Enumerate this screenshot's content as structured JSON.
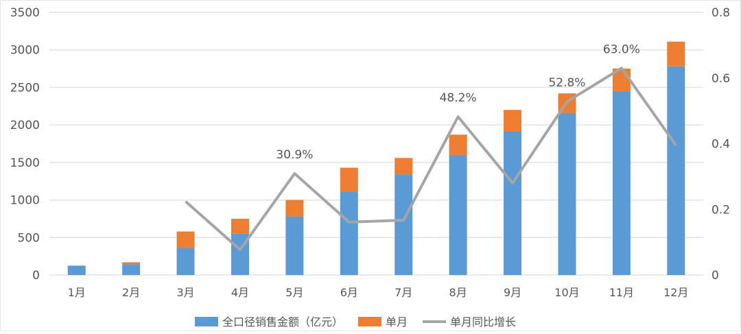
{
  "chart_data": {
    "type": "bar",
    "stacked": true,
    "categories": [
      "1月",
      "2月",
      "3月",
      "4月",
      "5月",
      "6月",
      "7月",
      "8月",
      "9月",
      "10月",
      "11月",
      "12月"
    ],
    "series": [
      {
        "name": "全口径销售金额（亿元）",
        "type": "bar",
        "axis": "left",
        "color": "#5b9bd5",
        "values": [
          125,
          145,
          360,
          550,
          780,
          1110,
          1340,
          1600,
          1910,
          2160,
          2450,
          2780
        ]
      },
      {
        "name": "单月",
        "type": "bar",
        "axis": "left",
        "color": "#ed7d31",
        "values": [
          0,
          25,
          220,
          200,
          220,
          320,
          220,
          270,
          290,
          260,
          300,
          330
        ]
      },
      {
        "name": "单月同比增长",
        "type": "line",
        "axis": "right",
        "color": "#a5a5a5",
        "values": [
          null,
          null,
          0.224,
          0.077,
          0.309,
          0.161,
          0.167,
          0.482,
          0.28,
          0.528,
          0.63,
          0.395
        ]
      }
    ],
    "annotations": [
      {
        "category": "5月",
        "text": "30.9%"
      },
      {
        "category": "8月",
        "text": "48.2%"
      },
      {
        "category": "10月",
        "text": "52.8%"
      },
      {
        "category": "11月",
        "text": "63.0%"
      }
    ],
    "yaxis_left": {
      "range": [
        0,
        3500
      ],
      "ticks": [
        "0",
        "500",
        "1000",
        "1500",
        "2000",
        "2500",
        "3000",
        "3500"
      ]
    },
    "yaxis_right": {
      "range": [
        0,
        0.8
      ],
      "ticks": [
        "0",
        "0.2",
        "0.4",
        "0.6",
        "0.8"
      ]
    },
    "grid": true,
    "legend": "bottom"
  }
}
